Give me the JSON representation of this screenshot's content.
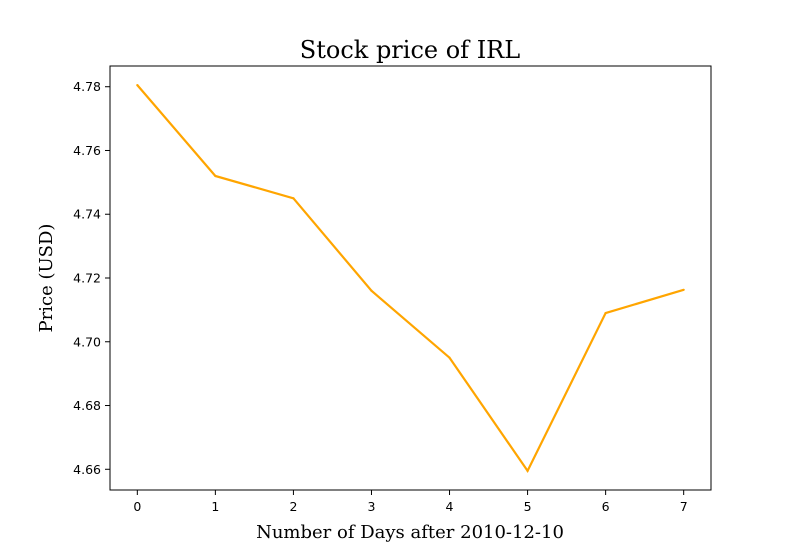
{
  "chart_data": {
    "type": "line",
    "title": "Stock price of IRL",
    "xlabel": "Number of Days after 2010-12-10",
    "ylabel": "Price (USD)",
    "x": [
      0,
      1,
      2,
      3,
      4,
      5,
      6,
      7
    ],
    "series": [
      {
        "values": [
          4.7805,
          4.752,
          4.745,
          4.716,
          4.695,
          4.6595,
          4.709,
          4.7163
        ],
        "color": "#FFA500"
      }
    ],
    "xticks": [
      "0",
      "1",
      "2",
      "3",
      "4",
      "5",
      "6",
      "7"
    ],
    "yticks": [
      "4.66",
      "4.68",
      "4.70",
      "4.72",
      "4.74",
      "4.76",
      "4.78"
    ],
    "xlim": [
      -0.35,
      7.35
    ],
    "ylim": [
      4.6535,
      4.7865
    ],
    "grid": false,
    "legend": "none"
  }
}
